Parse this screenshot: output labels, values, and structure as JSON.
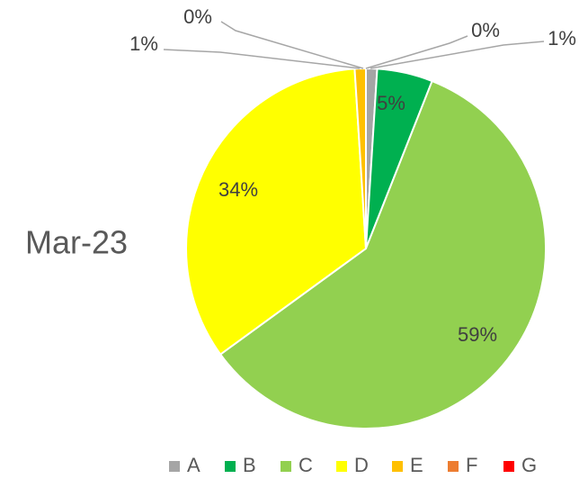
{
  "chart_data": {
    "type": "pie",
    "title": "Mar-23",
    "categories": [
      "A",
      "B",
      "C",
      "D",
      "E",
      "F",
      "G"
    ],
    "values": [
      1,
      5,
      59,
      34,
      1,
      0,
      0
    ],
    "value_labels": [
      "1%",
      "5%",
      "59%",
      "34%",
      "1%",
      "0%",
      "0%"
    ],
    "colors": [
      "#a5a5a5",
      "#00b050",
      "#92d050",
      "#ffff00",
      "#ffc000",
      "#ed7d31",
      "#ff0000"
    ],
    "legend": "bottom"
  }
}
